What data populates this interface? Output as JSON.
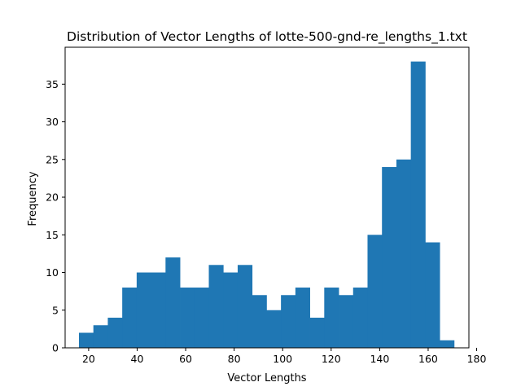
{
  "chart_data": {
    "type": "bar",
    "title": "Distribution of Vector Lengths of lotte-500-gnd-re_lengths_1.txt",
    "xlabel": "Vector Lengths",
    "ylabel": "Frequency",
    "xlim": [
      10.3,
      176.8
    ],
    "ylim": [
      0,
      39.9
    ],
    "xticks": [
      20,
      40,
      60,
      80,
      100,
      120,
      140,
      160,
      180
    ],
    "yticks": [
      0,
      5,
      10,
      15,
      20,
      25,
      30,
      35
    ],
    "bin_start": 16,
    "bin_width": 5.95,
    "values": [
      2,
      3,
      4,
      8,
      10,
      10,
      12,
      8,
      8,
      11,
      10,
      11,
      7,
      5,
      7,
      8,
      4,
      8,
      7,
      8,
      15,
      24,
      25,
      38,
      14,
      1
    ],
    "bar_color": "#1f77b4",
    "grid": false,
    "legend": "none"
  }
}
